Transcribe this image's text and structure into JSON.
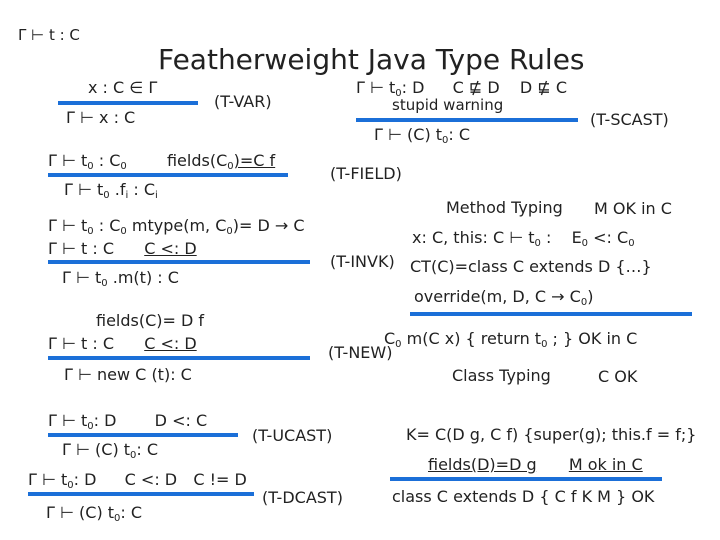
{
  "header": {
    "judgment": "Γ ⊢ t : C",
    "title": "Featherweight Java Type Rules"
  },
  "accent_color": "#1b6fd8",
  "rules": {
    "tvar": {
      "premise": "x : C ∈ Γ",
      "conclusion": "Γ ⊢ x : C",
      "name": "(T-VAR)"
    },
    "tfield": {
      "premise_a": "Γ ⊢ t",
      "premise_a_sub": "0",
      "premise_b": " : C",
      "premise_b_sub": "0",
      "premise_c": "fields(C",
      "premise_c_sub": "0",
      "premise_d": ")=C f",
      "conclusion_a": "Γ ⊢ t",
      "conclusion_a_sub": "0",
      "conclusion_b": " .f",
      "conclusion_b_sub": "i",
      "conclusion_c": " : C",
      "conclusion_c_sub": "i",
      "name": "(T-FIELD)"
    },
    "tinvk": {
      "line1_a": "Γ ⊢ t",
      "line1_a_sub": "0",
      "line1_b": " : C",
      "line1_b_sub": "0",
      "line1_c": " mtype(m, C",
      "line1_c_sub": "0",
      "line1_d": ")= D → C",
      "line2_a": "Γ ⊢ t : C",
      "line2_b": "C <: D",
      "conclusion_a": "Γ ⊢ t",
      "conclusion_a_sub": "0",
      "conclusion_b": " .m(t) : C",
      "name": "(T-INVK)"
    },
    "tnew": {
      "line1": "fields(C)= D f",
      "line2_a": "Γ ⊢ t : C",
      "line2_b": "C <: D",
      "conclusion": "Γ ⊢ new C (t): C",
      "name": "(T-NEW)"
    },
    "tucast": {
      "premise_a": "Γ ⊢ t",
      "premise_a_sub": "0",
      "premise_b": ": D",
      "premise_c": "D <: C",
      "conclusion_a": "Γ ⊢ (C) t",
      "conclusion_a_sub": "0",
      "conclusion_b": ": C",
      "name": "(T-UCAST)"
    },
    "tdcast": {
      "premise_a": "Γ ⊢ t",
      "premise_a_sub": "0",
      "premise_b": ": D",
      "premise_c": "C <: D",
      "premise_d": "C != D",
      "conclusion_a": "Γ ⊢ (C) t",
      "conclusion_a_sub": "0",
      "conclusion_b": ": C",
      "name": "(T-DCAST)"
    },
    "tscast": {
      "premise_a": "Γ ⊢ t",
      "premise_a_sub": "0",
      "premise_b": ": D",
      "premise_c": "C ⋢ D",
      "premise_d": "D ⋢ C",
      "note": "stupid warning",
      "conclusion_a": "Γ ⊢ (C) t",
      "conclusion_a_sub": "0",
      "conclusion_b": ": C",
      "name": "(T-SCAST)"
    }
  },
  "method_typing": {
    "heading": "Method Typing",
    "result": "M OK in C",
    "premise1_a": "x: C, this: C ⊢ t",
    "premise1_a_sub": "0",
    "premise1_b": " :",
    "premise1_c": "E",
    "premise1_c_sub": "0",
    "premise1_d": " <: C",
    "premise1_d_sub": "0",
    "premise2": "CT(C)=class C extends D {…}",
    "premise3_a": "override(m, D, C → C",
    "premise3_a_sub": "0",
    "premise3_b": ")",
    "conclusion_a": "C",
    "conclusion_a_sub": "0",
    "conclusion_b": " m(C x) { return t",
    "conclusion_b_sub": "0",
    "conclusion_c": " ; } OK in C"
  },
  "class_typing": {
    "heading": "Class Typing",
    "result": "C OK",
    "premise1": "K= C(D g, C f) {super(g); this.f = f;}",
    "premise2_a": "fields(D)=D g",
    "premise2_b": "M ok in C",
    "conclusion": "class C extends D { C f K M } OK"
  }
}
